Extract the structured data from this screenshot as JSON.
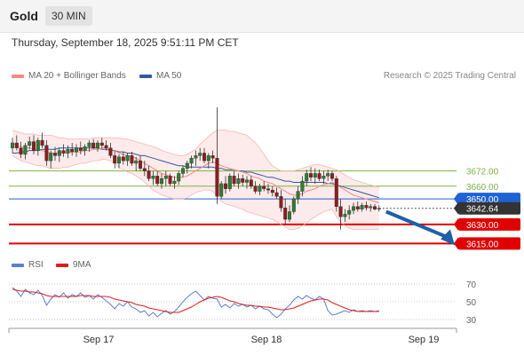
{
  "header": {
    "instrument": "Gold",
    "timeframe": "30 MIN"
  },
  "datetime": "Thursday, September 18, 2025 9:51:11 PM CET",
  "legend": {
    "ma20": {
      "label": "MA 20 + Bollinger Bands",
      "color": "#f28b82"
    },
    "ma50": {
      "label": "MA 50",
      "color": "#2e5c9e"
    }
  },
  "credit": "Research © 2025 Trading Central",
  "rsi_legend": {
    "rsi": {
      "label": "RSI",
      "color": "#5b7fd1"
    },
    "ma9": {
      "label": "9MA",
      "color": "#e11d1d"
    }
  },
  "chart_data": [
    {
      "type": "candlestick",
      "title": "Gold",
      "timeframe": "30 MIN",
      "x_ticks": [
        "Sep 17",
        "Sep 18",
        "Sep 19"
      ],
      "ylim": [
        3609,
        3740
      ],
      "current_price": "3642.64",
      "levels": [
        {
          "label": "3672.00",
          "value": 3672,
          "kind": "resistance",
          "color": "#7cb342"
        },
        {
          "label": "3660.00",
          "value": 3660,
          "kind": "resistance",
          "color": "#7cb342"
        },
        {
          "label": "3650.00",
          "value": 3650,
          "kind": "pivot",
          "color": "#1e63d6"
        },
        {
          "label": "3630.00",
          "value": 3630,
          "kind": "support",
          "color": "#e10000"
        },
        {
          "label": "3615.00",
          "value": 3615,
          "kind": "support",
          "color": "#e10000"
        }
      ],
      "candles": [
        [
          3690,
          3698,
          3686,
          3694
        ],
        [
          3694,
          3700,
          3688,
          3690
        ],
        [
          3690,
          3695,
          3682,
          3685
        ],
        [
          3685,
          3694,
          3681,
          3692
        ],
        [
          3692,
          3699,
          3689,
          3695
        ],
        [
          3695,
          3700,
          3685,
          3688
        ],
        [
          3688,
          3698,
          3684,
          3696
        ],
        [
          3696,
          3702,
          3690,
          3692
        ],
        [
          3692,
          3696,
          3676,
          3680
        ],
        [
          3680,
          3688,
          3674,
          3686
        ],
        [
          3686,
          3691,
          3680,
          3684
        ],
        [
          3684,
          3690,
          3679,
          3688
        ],
        [
          3688,
          3693,
          3683,
          3686
        ],
        [
          3686,
          3692,
          3682,
          3689
        ],
        [
          3689,
          3694,
          3684,
          3687
        ],
        [
          3687,
          3693,
          3683,
          3690
        ],
        [
          3690,
          3695,
          3685,
          3688
        ],
        [
          3688,
          3693,
          3684,
          3691
        ],
        [
          3691,
          3696,
          3687,
          3694
        ],
        [
          3694,
          3697,
          3689,
          3690
        ],
        [
          3690,
          3696,
          3687,
          3694
        ],
        [
          3694,
          3698,
          3690,
          3692
        ],
        [
          3692,
          3696,
          3688,
          3690
        ],
        [
          3690,
          3694,
          3682,
          3684
        ],
        [
          3684,
          3688,
          3674,
          3678
        ],
        [
          3678,
          3685,
          3674,
          3683
        ],
        [
          3683,
          3687,
          3677,
          3680
        ],
        [
          3680,
          3686,
          3676,
          3684
        ],
        [
          3684,
          3687,
          3676,
          3678
        ],
        [
          3678,
          3683,
          3672,
          3680
        ],
        [
          3680,
          3684,
          3672,
          3674
        ],
        [
          3674,
          3680,
          3668,
          3672
        ],
        [
          3672,
          3676,
          3664,
          3666
        ],
        [
          3666,
          3672,
          3661,
          3668
        ],
        [
          3668,
          3672,
          3660,
          3662
        ],
        [
          3662,
          3670,
          3658,
          3666
        ],
        [
          3666,
          3672,
          3660,
          3668
        ],
        [
          3668,
          3670,
          3660,
          3662
        ],
        [
          3662,
          3668,
          3658,
          3664
        ],
        [
          3664,
          3672,
          3661,
          3670
        ],
        [
          3670,
          3676,
          3667,
          3674
        ],
        [
          3674,
          3680,
          3670,
          3678
        ],
        [
          3678,
          3684,
          3674,
          3682
        ],
        [
          3682,
          3688,
          3676,
          3684
        ],
        [
          3684,
          3690,
          3680,
          3686
        ],
        [
          3686,
          3690,
          3678,
          3680
        ],
        [
          3680,
          3686,
          3674,
          3684
        ],
        [
          3684,
          3688,
          3678,
          3682
        ],
        [
          3682,
          3722,
          3646,
          3652
        ],
        [
          3652,
          3664,
          3650,
          3662
        ],
        [
          3662,
          3668,
          3654,
          3658
        ],
        [
          3658,
          3670,
          3656,
          3668
        ],
        [
          3668,
          3672,
          3660,
          3662
        ],
        [
          3662,
          3670,
          3658,
          3666
        ],
        [
          3666,
          3669,
          3660,
          3663
        ],
        [
          3663,
          3668,
          3658,
          3665
        ],
        [
          3665,
          3668,
          3658,
          3660
        ],
        [
          3660,
          3664,
          3654,
          3656
        ],
        [
          3656,
          3662,
          3653,
          3660
        ],
        [
          3660,
          3664,
          3656,
          3658
        ],
        [
          3658,
          3662,
          3654,
          3657
        ],
        [
          3657,
          3660,
          3652,
          3655
        ],
        [
          3655,
          3659,
          3650,
          3652
        ],
        [
          3652,
          3657,
          3640,
          3643
        ],
        [
          3643,
          3650,
          3630,
          3634
        ],
        [
          3634,
          3645,
          3632,
          3640
        ],
        [
          3640,
          3652,
          3638,
          3650
        ],
        [
          3650,
          3660,
          3646,
          3656
        ],
        [
          3656,
          3668,
          3652,
          3664
        ],
        [
          3664,
          3673,
          3660,
          3670
        ],
        [
          3670,
          3675,
          3664,
          3667
        ],
        [
          3667,
          3674,
          3662,
          3670
        ],
        [
          3670,
          3673,
          3664,
          3666
        ],
        [
          3666,
          3672,
          3662,
          3668
        ],
        [
          3668,
          3673,
          3664,
          3670
        ],
        [
          3670,
          3672,
          3664,
          3666
        ],
        [
          3666,
          3668,
          3640,
          3644
        ],
        [
          3644,
          3650,
          3626,
          3636
        ],
        [
          3636,
          3642,
          3632,
          3638
        ],
        [
          3638,
          3645,
          3634,
          3641
        ],
        [
          3641,
          3647,
          3638,
          3644
        ],
        [
          3644,
          3648,
          3640,
          3642
        ],
        [
          3642,
          3647,
          3640,
          3645
        ],
        [
          3645,
          3648,
          3641,
          3643
        ],
        [
          3643,
          3646,
          3640,
          3644
        ],
        [
          3644,
          3646,
          3641,
          3642
        ],
        [
          3642,
          3645,
          3640,
          3642.64
        ]
      ],
      "ma20": [
        3694,
        3692,
        3691,
        3690,
        3690,
        3689,
        3688,
        3688,
        3687,
        3686,
        3686,
        3686,
        3686,
        3686,
        3687,
        3687,
        3687,
        3688,
        3688,
        3689,
        3689,
        3690,
        3690,
        3689,
        3688,
        3686,
        3685,
        3684,
        3683,
        3682,
        3680,
        3678,
        3676,
        3674,
        3672,
        3670,
        3669,
        3668,
        3667,
        3667,
        3667,
        3668,
        3670,
        3672,
        3674,
        3676,
        3678,
        3679,
        3678,
        3676,
        3675,
        3674,
        3673,
        3672,
        3671,
        3670,
        3668,
        3667,
        3666,
        3664,
        3663,
        3662,
        3660,
        3658,
        3656,
        3654,
        3653,
        3653,
        3654,
        3656,
        3657,
        3658,
        3660,
        3661,
        3662,
        3663,
        3661,
        3659,
        3657,
        3655,
        3653,
        3652,
        3651,
        3650,
        3649,
        3648,
        3647
      ],
      "ma50": [
        3686,
        3686,
        3687,
        3687,
        3688,
        3688,
        3688,
        3689,
        3689,
        3689,
        3689,
        3690,
        3690,
        3690,
        3690,
        3690,
        3690,
        3690,
        3690,
        3690,
        3690,
        3689,
        3689,
        3688,
        3688,
        3687,
        3687,
        3686,
        3686,
        3685,
        3684,
        3684,
        3683,
        3682,
        3681,
        3680,
        3679,
        3678,
        3677,
        3676,
        3676,
        3675,
        3675,
        3675,
        3675,
        3675,
        3675,
        3675,
        3674,
        3674,
        3673,
        3673,
        3673,
        3672,
        3672,
        3671,
        3671,
        3670,
        3669,
        3668,
        3667,
        3667,
        3666,
        3665,
        3664,
        3664,
        3663,
        3663,
        3663,
        3663,
        3663,
        3663,
        3663,
        3663,
        3662,
        3662,
        3661,
        3660,
        3659,
        3658,
        3657,
        3656,
        3655,
        3654,
        3653,
        3652,
        3651
      ],
      "bb_upper": [
        3704,
        3703,
        3702,
        3701,
        3701,
        3701,
        3700,
        3700,
        3700,
        3700,
        3699,
        3698,
        3698,
        3697,
        3697,
        3697,
        3697,
        3697,
        3697,
        3698,
        3698,
        3698,
        3698,
        3698,
        3698,
        3698,
        3697,
        3697,
        3696,
        3695,
        3694,
        3693,
        3692,
        3691,
        3690,
        3688,
        3687,
        3686,
        3685,
        3684,
        3684,
        3685,
        3687,
        3689,
        3693,
        3696,
        3699,
        3702,
        3704,
        3704,
        3704,
        3703,
        3703,
        3702,
        3701,
        3700,
        3697,
        3694,
        3690,
        3685,
        3680,
        3676,
        3674,
        3672,
        3672,
        3672,
        3672,
        3673,
        3674,
        3675,
        3676,
        3677,
        3677,
        3676,
        3675,
        3674,
        3673,
        3671,
        3669,
        3667,
        3665,
        3664,
        3663,
        3662,
        3661,
        3660,
        3659
      ],
      "bb_lower": [
        3684,
        3682,
        3680,
        3679,
        3678,
        3677,
        3676,
        3676,
        3675,
        3674,
        3674,
        3674,
        3675,
        3675,
        3676,
        3677,
        3678,
        3678,
        3679,
        3680,
        3680,
        3681,
        3681,
        3680,
        3678,
        3675,
        3673,
        3671,
        3670,
        3668,
        3666,
        3663,
        3660,
        3657,
        3655,
        3653,
        3652,
        3651,
        3650,
        3650,
        3650,
        3651,
        3653,
        3655,
        3656,
        3657,
        3657,
        3656,
        3652,
        3648,
        3646,
        3645,
        3644,
        3643,
        3642,
        3640,
        3639,
        3638,
        3637,
        3636,
        3635,
        3634,
        3632,
        3630,
        3628,
        3626,
        3626,
        3627,
        3629,
        3631,
        3634,
        3636,
        3638,
        3640,
        3641,
        3642,
        3636,
        3632,
        3629,
        3627,
        3626,
        3626,
        3626,
        3626,
        3626,
        3626,
        3626
      ]
    },
    {
      "type": "line",
      "title": "RSI",
      "ylim": [
        20,
        80
      ],
      "y_ticks": [
        30,
        50,
        70
      ],
      "series": [
        {
          "name": "RSI",
          "values": [
            66,
            62,
            56,
            64,
            60,
            58,
            63,
            57,
            46,
            53,
            58,
            55,
            60,
            54,
            58,
            56,
            60,
            55,
            57,
            53,
            58,
            55,
            51,
            47,
            42,
            48,
            45,
            50,
            44,
            42,
            38,
            40,
            34,
            38,
            33,
            37,
            40,
            36,
            39,
            44,
            50,
            55,
            59,
            62,
            57,
            52,
            56,
            54,
            53,
            44,
            47,
            43,
            48,
            45,
            47,
            44,
            46,
            42,
            45,
            42,
            41,
            36,
            32,
            36,
            42,
            46,
            52,
            56,
            53,
            57,
            54,
            52,
            56,
            53,
            40,
            35,
            36,
            38,
            40,
            38,
            41,
            39,
            40,
            39,
            40,
            39,
            40
          ]
        },
        {
          "name": "9MA",
          "values": [
            64,
            63,
            62,
            62,
            61,
            61,
            60,
            59,
            57,
            56,
            56,
            56,
            56,
            56,
            56,
            56,
            57,
            57,
            57,
            56,
            56,
            56,
            56,
            55,
            53,
            52,
            51,
            50,
            49,
            47,
            46,
            45,
            43,
            42,
            41,
            40,
            39,
            38,
            38,
            38,
            40,
            42,
            44,
            47,
            50,
            52,
            54,
            55,
            56,
            55,
            53,
            51,
            50,
            48,
            47,
            46,
            46,
            45,
            45,
            44,
            44,
            43,
            42,
            41,
            41,
            42,
            43,
            45,
            47,
            49,
            51,
            52,
            53,
            53,
            52,
            49,
            47,
            45,
            43,
            41,
            40,
            39,
            39,
            39,
            39,
            39,
            39
          ]
        }
      ]
    }
  ]
}
